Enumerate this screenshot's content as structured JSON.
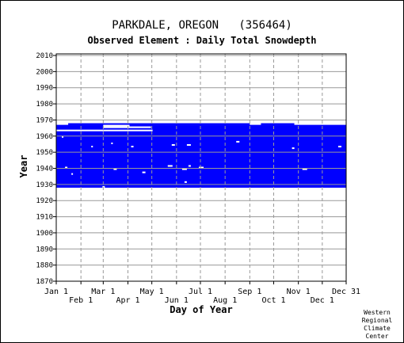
{
  "chart_data": {
    "type": "heatmap",
    "title": "PARKDALE, OREGON   (356464)",
    "subtitle": "Observed Element : Daily Total Snowdepth",
    "xlabel": "Day of Year",
    "ylabel": "Year",
    "x_ticks_top_row": [
      "Jan 1",
      "Mar 1",
      "May 1",
      "Jul 1",
      "Sep 1",
      "Nov 1",
      "Dec 31"
    ],
    "x_ticks_bottom_row": [
      "Feb 1",
      "Apr 1",
      "Jun 1",
      "Aug 1",
      "Oct 1",
      "Dec 1"
    ],
    "x_tick_days": [
      1,
      32,
      60,
      91,
      121,
      152,
      182,
      213,
      244,
      274,
      305,
      335,
      365
    ],
    "y_ticks": [
      1870,
      1880,
      1890,
      1900,
      1910,
      1920,
      1930,
      1940,
      1950,
      1960,
      1970,
      1980,
      1990,
      2000,
      2010
    ],
    "xlim": [
      1,
      365
    ],
    "ylim": [
      1870,
      2011
    ],
    "grid": true,
    "data_color": "#0000ff",
    "coverage": {
      "first_year": 1928,
      "last_year": 1966,
      "partial_year_1967_days": [
        1,
        300
      ],
      "note_gaps": "scattered missing days"
    },
    "missing_segments": [
      {
        "year": 1967,
        "start_day": 1,
        "end_day": 16
      },
      {
        "year": 1966,
        "start_day": 60,
        "end_day": 93
      },
      {
        "year": 1965,
        "start_day": 60,
        "end_day": 120
      },
      {
        "year": 1963,
        "start_day": 1,
        "end_day": 60
      },
      {
        "year": 1963,
        "start_day": 60,
        "end_day": 122
      },
      {
        "year": 1967,
        "start_day": 244,
        "end_day": 258
      },
      {
        "year": 1967,
        "start_day": 300,
        "end_day": 365
      },
      {
        "year": 1959,
        "start_day": 8,
        "end_day": 10
      },
      {
        "year": 1955,
        "start_day": 70,
        "end_day": 72
      },
      {
        "year": 1956,
        "start_day": 227,
        "end_day": 231
      },
      {
        "year": 1954,
        "start_day": 146,
        "end_day": 150
      },
      {
        "year": 1954,
        "start_day": 165,
        "end_day": 170
      },
      {
        "year": 1953,
        "start_day": 45,
        "end_day": 47
      },
      {
        "year": 1953,
        "start_day": 95,
        "end_day": 98
      },
      {
        "year": 1953,
        "start_day": 355,
        "end_day": 359
      },
      {
        "year": 1952,
        "start_day": 297,
        "end_day": 300
      },
      {
        "year": 1941,
        "start_day": 141,
        "end_day": 147
      },
      {
        "year": 1941,
        "start_day": 167,
        "end_day": 170
      },
      {
        "year": 1940,
        "start_day": 12,
        "end_day": 15
      },
      {
        "year": 1939,
        "start_day": 73,
        "end_day": 77
      },
      {
        "year": 1939,
        "start_day": 159,
        "end_day": 165
      },
      {
        "year": 1940,
        "start_day": 180,
        "end_day": 186
      },
      {
        "year": 1939,
        "start_day": 310,
        "end_day": 316
      },
      {
        "year": 1937,
        "start_day": 109,
        "end_day": 113
      },
      {
        "year": 1936,
        "start_day": 20,
        "end_day": 22
      },
      {
        "year": 1931,
        "start_day": 162,
        "end_day": 165
      },
      {
        "year": 1928,
        "start_day": 59,
        "end_day": 62
      }
    ]
  },
  "credit": [
    "Western",
    "Regional",
    "Climate",
    "Center"
  ]
}
